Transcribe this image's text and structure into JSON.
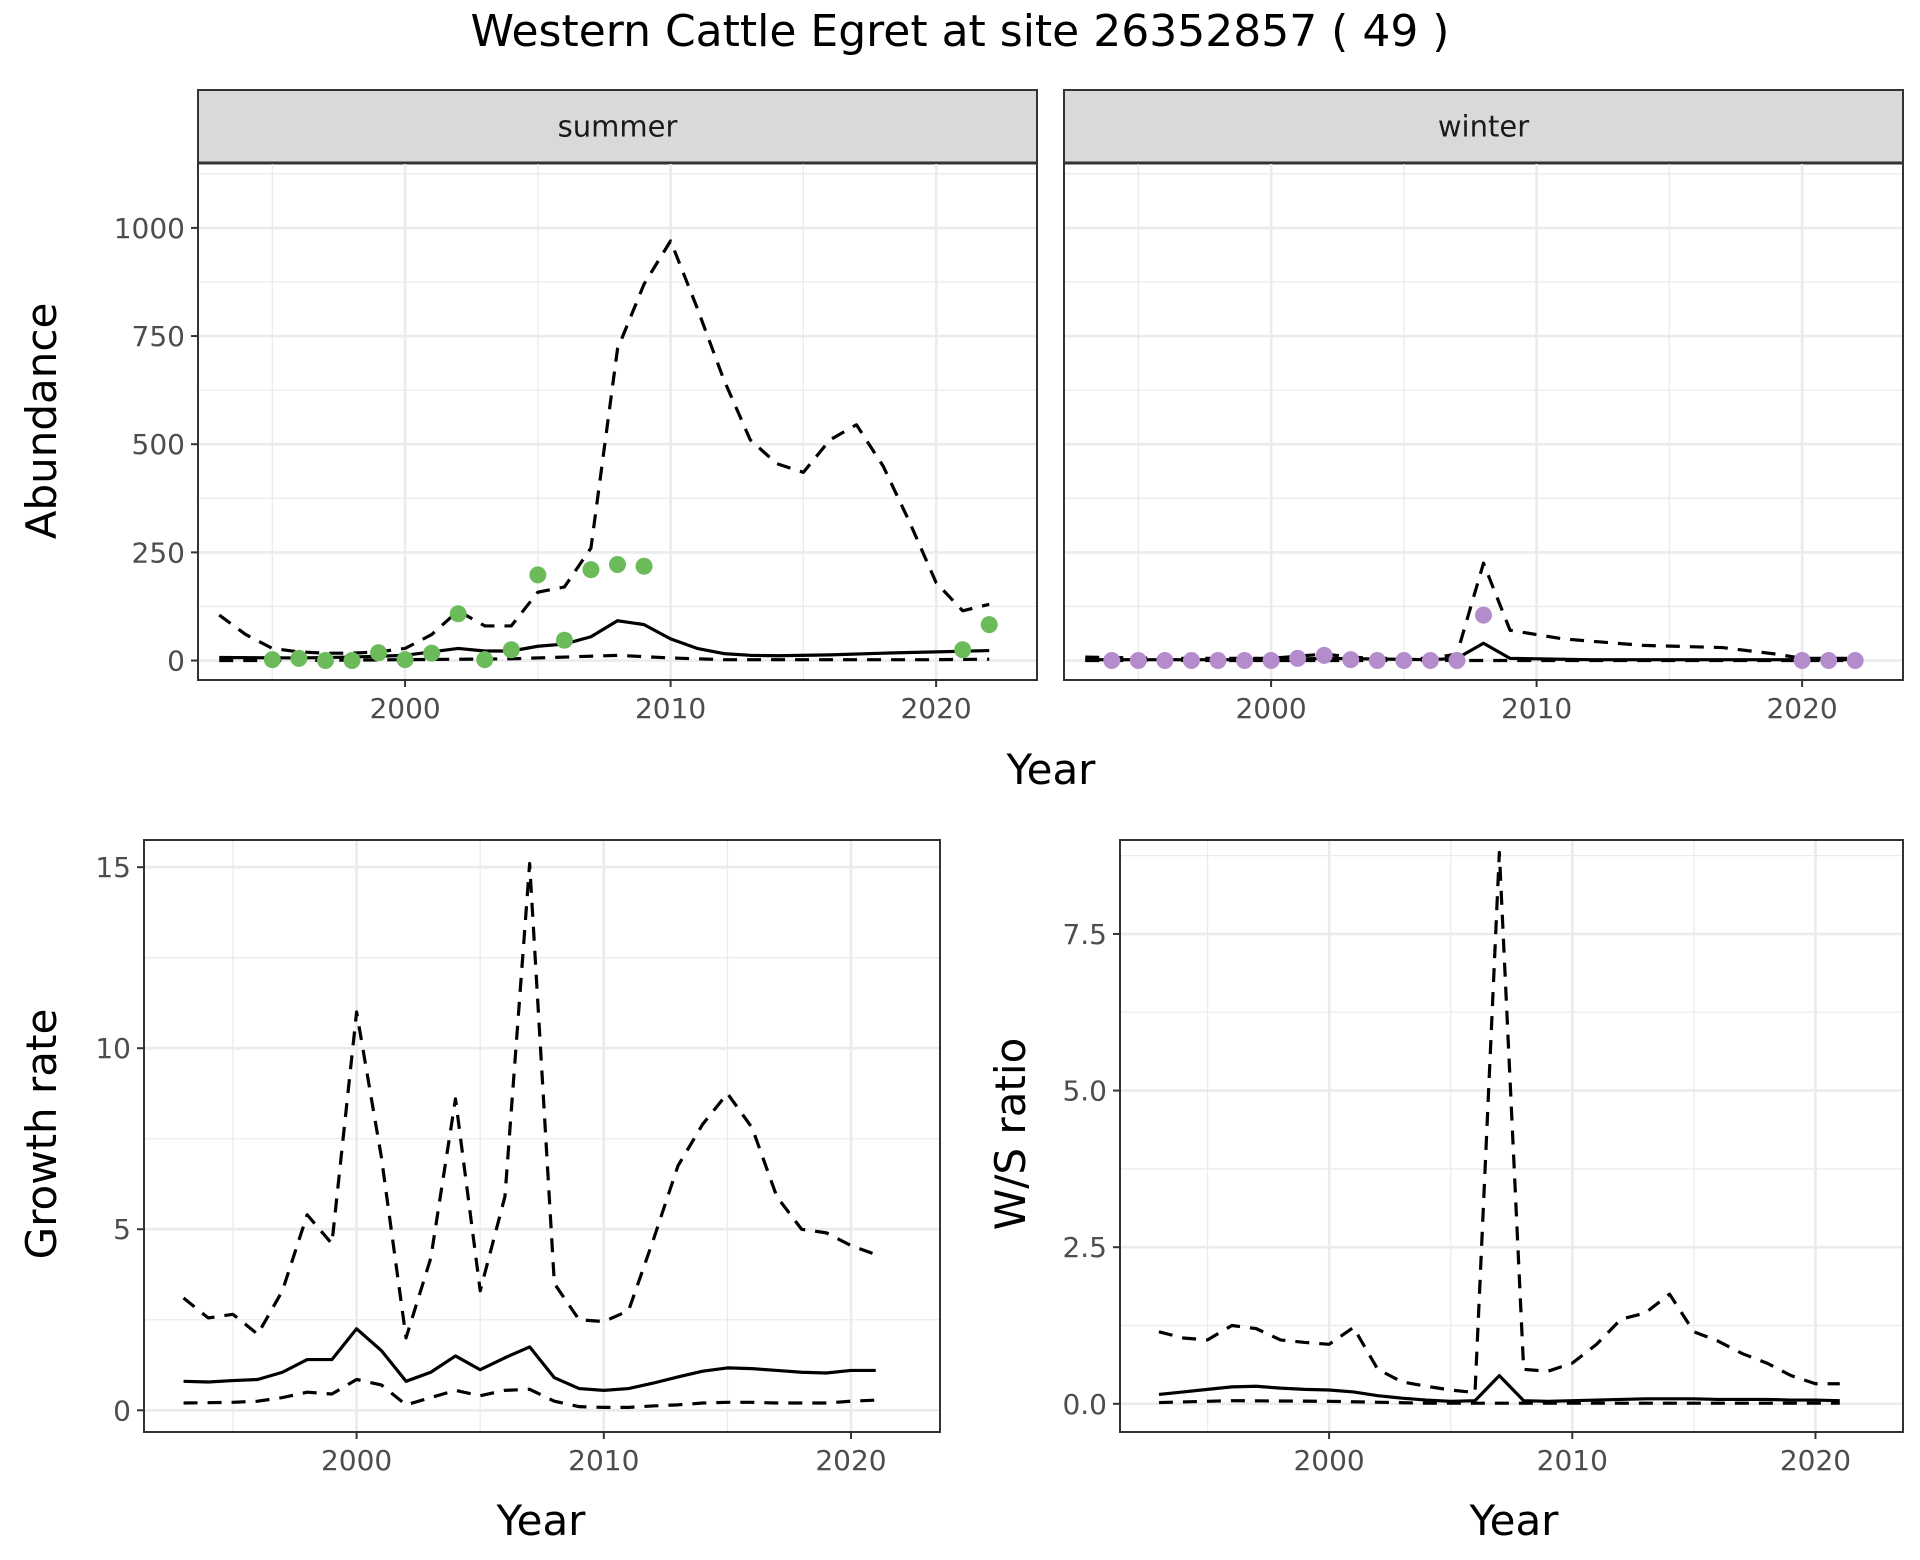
{
  "title": "Western Cattle Egret at site 26352857 ( 49 )",
  "colors": {
    "summer_points": "#6cbb5a",
    "winter_points": "#b48ccb",
    "strip_bg": "#d9d9d9",
    "line": "#000000"
  },
  "chart_data": [
    {
      "id": "summer",
      "type": "line",
      "facet_label": "summer",
      "ylabel": "Abundance",
      "xlabel": "Year",
      "xlim": [
        1992.2,
        2023.8
      ],
      "ylim": [
        -45,
        1150
      ],
      "x_ticks": [
        2000,
        2010,
        2020
      ],
      "y_ticks": [
        0,
        250,
        500,
        750,
        1000
      ],
      "grid": true,
      "series": [
        {
          "role": "mean",
          "style": "solid",
          "x": [
            1993,
            1996,
            1998,
            2000,
            2002,
            2003,
            2004,
            2005,
            2006,
            2007,
            2008,
            2009,
            2010,
            2011,
            2012,
            2013,
            2014,
            2016,
            2018,
            2020,
            2022
          ],
          "y": [
            7,
            6,
            8,
            12,
            28,
            22,
            22,
            33,
            38,
            55,
            92,
            83,
            50,
            28,
            16,
            12,
            11,
            13,
            17,
            20,
            23
          ]
        },
        {
          "role": "upper",
          "style": "dashed",
          "x": [
            1993,
            1994,
            1995,
            1996,
            1997,
            1998,
            1999,
            2000,
            2001,
            2002,
            2003,
            2004,
            2005,
            2006,
            2007,
            2008,
            2009,
            2010,
            2011,
            2012,
            2013,
            2014,
            2015,
            2016,
            2017,
            2018,
            2019,
            2020,
            2021,
            2022
          ],
          "y": [
            105,
            60,
            28,
            20,
            17,
            17,
            20,
            28,
            60,
            115,
            80,
            80,
            158,
            170,
            260,
            720,
            870,
            970,
            815,
            650,
            510,
            455,
            435,
            510,
            545,
            450,
            320,
            180,
            115,
            130
          ]
        },
        {
          "role": "lower",
          "style": "dashed",
          "x": [
            1993,
            1996,
            2000,
            2004,
            2008,
            2010,
            2012,
            2016,
            2020,
            2022
          ],
          "y": [
            0,
            0,
            2,
            4,
            12,
            6,
            2,
            2,
            2,
            3
          ]
        }
      ],
      "points": {
        "x": [
          1995,
          1996,
          1997,
          1998,
          1999,
          2000,
          2001,
          2002,
          2003,
          2004,
          2005,
          2006,
          2007,
          2008,
          2009,
          2021,
          2022
        ],
        "y": [
          2,
          5,
          0,
          0,
          18,
          2,
          17,
          108,
          2,
          25,
          198,
          47,
          210,
          222,
          218,
          25,
          83
        ]
      }
    },
    {
      "id": "winter",
      "type": "line",
      "facet_label": "winter",
      "xlim": [
        1992.2,
        2023.8
      ],
      "ylim": [
        -45,
        1150
      ],
      "x_ticks": [
        2000,
        2010,
        2020
      ],
      "grid": true,
      "series": [
        {
          "role": "mean",
          "style": "solid",
          "x": [
            1993,
            2000,
            2002,
            2006,
            2007,
            2008,
            2009,
            2012,
            2016,
            2020,
            2022
          ],
          "y": [
            2,
            2,
            5,
            2,
            5,
            40,
            5,
            2,
            2,
            2,
            2
          ]
        },
        {
          "role": "upper",
          "style": "dashed",
          "x": [
            1993,
            1996,
            2000,
            2001,
            2002,
            2003,
            2004,
            2005,
            2006,
            2007,
            2008,
            2009,
            2011,
            2014,
            2017,
            2019,
            2020,
            2022
          ],
          "y": [
            8,
            5,
            5,
            10,
            15,
            8,
            5,
            5,
            5,
            15,
            225,
            70,
            50,
            35,
            30,
            15,
            5,
            5
          ]
        },
        {
          "role": "lower",
          "style": "dashed",
          "x": [
            1993,
            2022
          ],
          "y": [
            0,
            0
          ]
        }
      ],
      "points": {
        "x": [
          1994,
          1995,
          1996,
          1997,
          1998,
          1999,
          2000,
          2001,
          2002,
          2003,
          2004,
          2005,
          2006,
          2007,
          2008,
          2020,
          2021,
          2022
        ],
        "y": [
          0,
          0,
          0,
          0,
          0,
          0,
          0,
          5,
          12,
          2,
          0,
          0,
          0,
          0,
          105,
          0,
          0,
          0
        ]
      }
    },
    {
      "id": "growth",
      "type": "line",
      "ylabel": "Growth rate",
      "xlabel": "Year",
      "xlim": [
        1991.4,
        2023.6
      ],
      "ylim": [
        -0.6,
        15.75
      ],
      "x_ticks": [
        2000,
        2010,
        2020
      ],
      "y_ticks": [
        0,
        5,
        10,
        15
      ],
      "grid": true,
      "series": [
        {
          "role": "mean",
          "style": "solid",
          "x": [
            1993,
            1994,
            1995,
            1996,
            1997,
            1998,
            1999,
            2000,
            2001,
            2002,
            2003,
            2004,
            2005,
            2006,
            2007,
            2008,
            2009,
            2010,
            2011,
            2012,
            2013,
            2014,
            2015,
            2016,
            2017,
            2018,
            2019,
            2020,
            2021
          ],
          "y": [
            0.8,
            0.78,
            0.82,
            0.85,
            1.05,
            1.4,
            1.4,
            2.25,
            1.65,
            0.8,
            1.05,
            1.5,
            1.12,
            1.45,
            1.75,
            0.9,
            0.6,
            0.55,
            0.6,
            0.75,
            0.92,
            1.08,
            1.17,
            1.15,
            1.1,
            1.05,
            1.03,
            1.1,
            1.1
          ]
        },
        {
          "role": "upper",
          "style": "dashed",
          "x": [
            1993,
            1994,
            1995,
            1996,
            1997,
            1998,
            1999,
            2000,
            2001,
            2002,
            2003,
            2004,
            2005,
            2006,
            2007,
            2008,
            2009,
            2010,
            2011,
            2012,
            2013,
            2014,
            2015,
            2016,
            2017,
            2018,
            2019,
            2020,
            2021
          ],
          "y": [
            3.1,
            2.55,
            2.65,
            2.1,
            3.3,
            5.4,
            4.6,
            11.0,
            7.0,
            2.0,
            4.2,
            8.6,
            3.3,
            5.9,
            15.1,
            3.5,
            2.5,
            2.45,
            2.75,
            4.7,
            6.75,
            7.9,
            8.75,
            7.8,
            5.9,
            5.0,
            4.9,
            4.55,
            4.3
          ]
        },
        {
          "role": "lower",
          "style": "dashed",
          "x": [
            1993,
            1995,
            1996,
            1997,
            1998,
            1999,
            2000,
            2001,
            2002,
            2003,
            2004,
            2005,
            2006,
            2007,
            2008,
            2009,
            2010,
            2011,
            2012,
            2013,
            2014,
            2015,
            2016,
            2017,
            2018,
            2019,
            2020,
            2021
          ],
          "y": [
            0.2,
            0.22,
            0.25,
            0.35,
            0.5,
            0.45,
            0.85,
            0.7,
            0.15,
            0.35,
            0.55,
            0.4,
            0.55,
            0.58,
            0.25,
            0.1,
            0.08,
            0.08,
            0.12,
            0.15,
            0.2,
            0.22,
            0.22,
            0.2,
            0.2,
            0.2,
            0.25,
            0.28
          ]
        }
      ]
    },
    {
      "id": "ratio",
      "type": "line",
      "ylabel": "W/S ratio",
      "xlabel": "Year",
      "xlim": [
        1991.4,
        2023.6
      ],
      "ylim": [
        -0.45,
        9.0
      ],
      "x_ticks": [
        2000,
        2010,
        2020
      ],
      "y_ticks": [
        0.0,
        2.5,
        5.0,
        7.5
      ],
      "y_tick_labels": [
        "0.0",
        "2.5",
        "5.0",
        "7.5"
      ],
      "grid": true,
      "series": [
        {
          "role": "mean",
          "style": "solid",
          "x": [
            1993,
            1994,
            1995,
            1996,
            1997,
            1998,
            1999,
            2000,
            2001,
            2002,
            2003,
            2004,
            2005,
            2006,
            2007,
            2008,
            2009,
            2010,
            2011,
            2012,
            2013,
            2014,
            2015,
            2016,
            2017,
            2018,
            2019,
            2020,
            2021
          ],
          "y": [
            0.15,
            0.19,
            0.23,
            0.27,
            0.28,
            0.25,
            0.23,
            0.22,
            0.19,
            0.13,
            0.09,
            0.06,
            0.04,
            0.05,
            0.45,
            0.05,
            0.04,
            0.05,
            0.06,
            0.07,
            0.08,
            0.08,
            0.08,
            0.07,
            0.07,
            0.07,
            0.06,
            0.06,
            0.05
          ]
        },
        {
          "role": "upper",
          "style": "dashed",
          "x": [
            1993,
            1994,
            1995,
            1996,
            1997,
            1998,
            1999,
            2000,
            2001,
            2002,
            2003,
            2004,
            2005,
            2006,
            2007,
            2008,
            2009,
            2010,
            2011,
            2012,
            2013,
            2014,
            2015,
            2016,
            2017,
            2018,
            2019,
            2020,
            2021
          ],
          "y": [
            1.15,
            1.05,
            1.02,
            1.25,
            1.2,
            1.02,
            0.98,
            0.95,
            1.22,
            0.55,
            0.35,
            0.28,
            0.22,
            0.18,
            8.8,
            0.55,
            0.52,
            0.65,
            0.95,
            1.35,
            1.45,
            1.75,
            1.15,
            1.0,
            0.8,
            0.65,
            0.45,
            0.32,
            0.32
          ]
        },
        {
          "role": "lower",
          "style": "dashed",
          "x": [
            1993,
            1996,
            2000,
            2004,
            2006,
            2008,
            2012,
            2016,
            2021
          ],
          "y": [
            0.02,
            0.05,
            0.04,
            0.01,
            0.01,
            0.01,
            0.01,
            0.01,
            0.01
          ]
        }
      ]
    }
  ]
}
